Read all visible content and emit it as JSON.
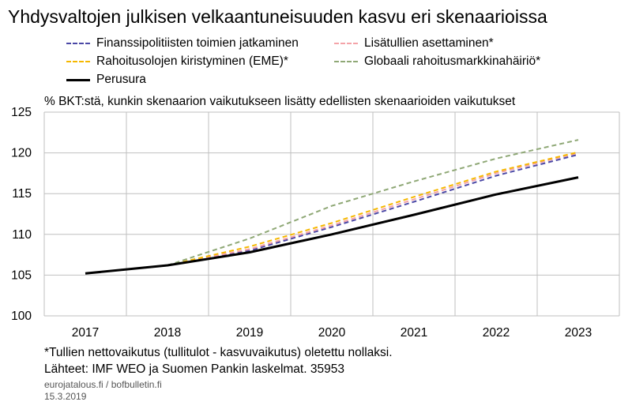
{
  "title": "Yhdysvaltojen julkisen velkaantuneisuuden kasvu eri skenaarioissa",
  "subtitle": "% BKT:stä, kunkin skenaarion vaikutukseen lisätty edellisten skenaarioiden vaikutukset",
  "footnote": "*Tullien nettovaikutus (tullitulot - kasvuvaikutus) oletettu nollaksi.",
  "sources": "Lähteet: IMF WEO ja Suomen Pankin laskelmat. 35953",
  "site": "eurojatalous.fi / bofbulletin.fi",
  "date": "15.3.2019",
  "chart_data": {
    "type": "line",
    "x": [
      "2017",
      "2018",
      "2019",
      "2020",
      "2021",
      "2022",
      "2023"
    ],
    "ylim": [
      100,
      125
    ],
    "yticks": [
      100,
      105,
      110,
      115,
      120,
      125
    ],
    "grid": true,
    "legend_position": "top",
    "series": [
      {
        "name": "Finanssipolitiisten toimien jatkaminen",
        "color": "#4B48A6",
        "dash": true,
        "values": [
          null,
          106.2,
          108.0,
          110.9,
          114.0,
          117.2,
          119.8
        ]
      },
      {
        "name": "Lisätullien asettaminen*",
        "color": "#F4A3A8",
        "dash": true,
        "values": [
          null,
          106.2,
          108.2,
          111.1,
          114.3,
          117.5,
          120.0
        ]
      },
      {
        "name": "Rahoitusolojen kiristyminen (EME)*",
        "color": "#F5B800",
        "dash": true,
        "values": [
          null,
          106.2,
          108.5,
          111.4,
          114.6,
          117.7,
          120.1
        ]
      },
      {
        "name": "Globaali rahoitusmarkkinahäiriö*",
        "color": "#8FA876",
        "dash": true,
        "values": [
          null,
          106.2,
          109.5,
          113.5,
          116.5,
          119.3,
          121.6
        ]
      },
      {
        "name": "Perusura",
        "color": "#000000",
        "dash": false,
        "values": [
          105.2,
          106.2,
          107.8,
          110.0,
          112.4,
          114.9,
          117.0
        ]
      }
    ]
  }
}
